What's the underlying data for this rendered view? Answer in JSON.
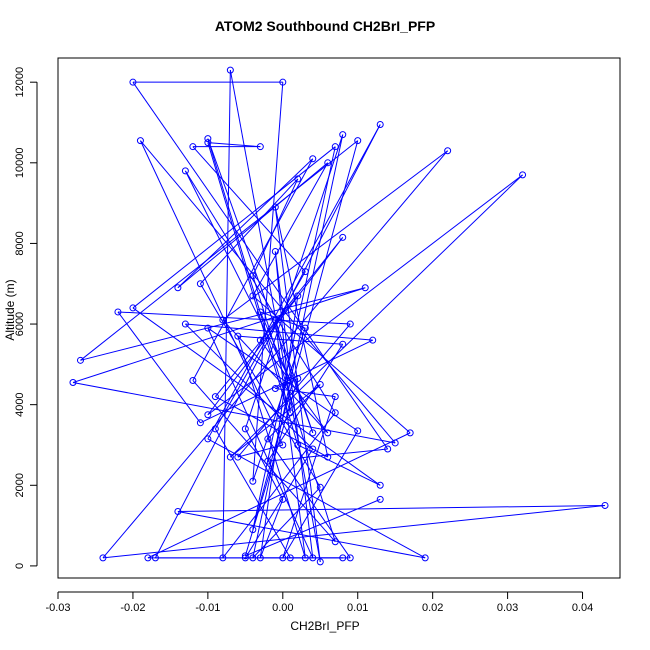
{
  "chart_data": {
    "type": "scatter",
    "title": "ATOM2 Southbound CH2BrI_PFP",
    "xlabel": "CH2BrI_PFP",
    "ylabel": "Altitude (m)",
    "xlim": [
      -0.03,
      0.045
    ],
    "ylim": [
      -300,
      12600
    ],
    "xticks": [
      -0.03,
      -0.02,
      -0.01,
      0.0,
      0.01,
      0.02,
      0.03,
      0.04
    ],
    "xtick_labels": [
      "-0.03",
      "-0.02",
      "-0.01",
      "0.00",
      "0.01",
      "0.02",
      "0.03",
      "0.04"
    ],
    "yticks": [
      0,
      2000,
      4000,
      6000,
      8000,
      10000,
      12000
    ],
    "ytick_labels": [
      "0",
      "2000",
      "4000",
      "6000",
      "8000",
      "10000",
      "12000"
    ],
    "grid": false,
    "legend": "none",
    "color": "#0000ff",
    "marker": "open-circle",
    "connected": true,
    "points": [
      {
        "x": 0.001,
        "y": 200
      },
      {
        "x": -0.009,
        "y": 3400
      },
      {
        "x": 0.003,
        "y": 7300
      },
      {
        "x": -0.012,
        "y": 10400
      },
      {
        "x": -0.003,
        "y": 10400
      },
      {
        "x": -0.01,
        "y": 10500
      },
      {
        "x": 0.002,
        "y": 3000
      },
      {
        "x": 0.013,
        "y": 2000
      },
      {
        "x": -0.02,
        "y": 6400
      },
      {
        "x": 0.007,
        "y": 10400
      },
      {
        "x": -0.004,
        "y": 900
      },
      {
        "x": 0.01,
        "y": 10550
      },
      {
        "x": -0.027,
        "y": 5100
      },
      {
        "x": 0.011,
        "y": 6900
      },
      {
        "x": -0.028,
        "y": 4550
      },
      {
        "x": 0.015,
        "y": 3050
      },
      {
        "x": -0.019,
        "y": 10550
      },
      {
        "x": 0.0,
        "y": 3000
      },
      {
        "x": -0.006,
        "y": 2700
      },
      {
        "x": 0.009,
        "y": 6000
      },
      {
        "x": -0.022,
        "y": 6300
      },
      {
        "x": -0.011,
        "y": 3550
      },
      {
        "x": 0.012,
        "y": 5600
      },
      {
        "x": -0.013,
        "y": 6000
      },
      {
        "x": 0.004,
        "y": 2900
      },
      {
        "x": -0.005,
        "y": 200
      },
      {
        "x": 0.008,
        "y": 200
      },
      {
        "x": -0.017,
        "y": 200
      },
      {
        "x": 0.013,
        "y": 10950
      },
      {
        "x": -0.01,
        "y": 3150
      },
      {
        "x": 0.019,
        "y": 200
      },
      {
        "x": -0.014,
        "y": 1350
      },
      {
        "x": 0.043,
        "y": 1500
      },
      {
        "x": -0.024,
        "y": 200
      },
      {
        "x": 0.022,
        "y": 10300
      },
      {
        "x": -0.008,
        "y": 6100
      },
      {
        "x": 0.006,
        "y": 3300
      },
      {
        "x": -0.003,
        "y": 5600
      },
      {
        "x": 0.008,
        "y": 8150
      },
      {
        "x": -0.01,
        "y": 3750
      },
      {
        "x": 0.032,
        "y": 9700
      },
      {
        "x": -0.007,
        "y": 2700
      },
      {
        "x": 0.005,
        "y": 4500
      },
      {
        "x": -0.002,
        "y": 3150
      },
      {
        "x": 0.009,
        "y": 200
      },
      {
        "x": -0.018,
        "y": 200
      },
      {
        "x": 0.017,
        "y": 3300
      },
      {
        "x": -0.004,
        "y": 6700
      },
      {
        "x": 0.006,
        "y": 10000
      },
      {
        "x": -0.014,
        "y": 6900
      },
      {
        "x": 0.004,
        "y": 10100
      },
      {
        "x": -0.012,
        "y": 4600
      },
      {
        "x": 0.007,
        "y": 600
      },
      {
        "x": -0.004,
        "y": 7200
      },
      {
        "x": 0.002,
        "y": 9600
      },
      {
        "x": -0.011,
        "y": 7000
      },
      {
        "x": 0.005,
        "y": 1950
      },
      {
        "x": -0.004,
        "y": 200
      },
      {
        "x": 0.008,
        "y": 10700
      },
      {
        "x": -0.005,
        "y": 3400
      },
      {
        "x": 0.0,
        "y": 1650
      },
      {
        "x": -0.003,
        "y": 200
      },
      {
        "x": 0.002,
        "y": 6700
      },
      {
        "x": -0.009,
        "y": 4200
      },
      {
        "x": 0.006,
        "y": 2700
      },
      {
        "x": -0.001,
        "y": 8900
      },
      {
        "x": 0.005,
        "y": 100
      },
      {
        "x": -0.007,
        "y": 12300
      },
      {
        "x": -0.008,
        "y": 200
      },
      {
        "x": 0.007,
        "y": 3800
      },
      {
        "x": -0.013,
        "y": 9800
      },
      {
        "x": 0.001,
        "y": 4600
      },
      {
        "x": -0.003,
        "y": 6300
      },
      {
        "x": 0.003,
        "y": 5900
      },
      {
        "x": -0.004,
        "y": 2100
      },
      {
        "x": 0.0,
        "y": 12000
      },
      {
        "x": -0.02,
        "y": 12000
      },
      {
        "x": 0.014,
        "y": 2900
      },
      {
        "x": -0.002,
        "y": 2600
      },
      {
        "x": 0.008,
        "y": 5500
      },
      {
        "x": -0.006,
        "y": 5700
      },
      {
        "x": 0.003,
        "y": 200
      },
      {
        "x": -0.001,
        "y": 6100
      },
      {
        "x": 0.004,
        "y": 3300
      },
      {
        "x": -0.01,
        "y": 10600
      },
      {
        "x": 0.001,
        "y": 3800
      },
      {
        "x": -0.001,
        "y": 7800
      },
      {
        "x": 0.004,
        "y": 200
      },
      {
        "x": -0.01,
        "y": 5900
      },
      {
        "x": 0.01,
        "y": 3350
      },
      {
        "x": 0.0,
        "y": 200
      },
      {
        "x": 0.007,
        "y": 4200
      },
      {
        "x": -0.001,
        "y": 4400
      },
      {
        "x": 0.002,
        "y": 4650
      },
      {
        "x": -0.005,
        "y": 250
      },
      {
        "x": 0.013,
        "y": 1650
      }
    ]
  }
}
